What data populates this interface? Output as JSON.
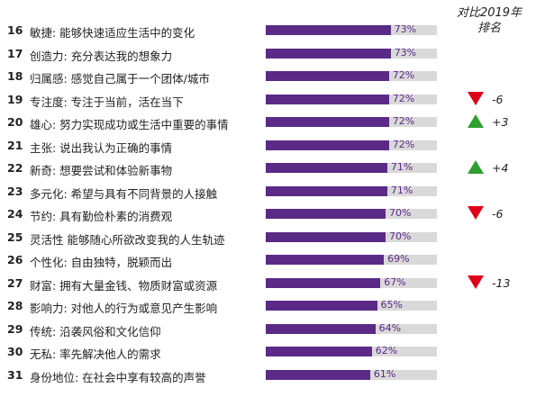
{
  "header": {
    "line1": "对比2019年",
    "line2": "排名"
  },
  "colors": {
    "bar": "#5b2a86",
    "track": "#d9d9d9",
    "up": "#2e9e2e",
    "down": "#e0001a"
  },
  "chart_data": {
    "type": "bar",
    "orientation": "horizontal",
    "xlim": [
      0,
      100
    ],
    "rows": [
      {
        "rank": "16",
        "label": "敏捷: 能够快速适应生活中的变化",
        "value": 73,
        "value_label": "73%",
        "change": null
      },
      {
        "rank": "17",
        "label": "创造力: 充分表达我的想象力",
        "value": 73,
        "value_label": "73%",
        "change": null
      },
      {
        "rank": "18",
        "label": "归属感: 感觉自己属于一个团体/城市",
        "value": 72,
        "value_label": "72%",
        "change": null
      },
      {
        "rank": "19",
        "label": "专注度: 专注于当前，活在当下",
        "value": 72,
        "value_label": "72%",
        "change": {
          "direction": "down",
          "text": "-6"
        }
      },
      {
        "rank": "20",
        "label": "雄心: 努力实现成功或生活中重要的事情",
        "value": 72,
        "value_label": "72%",
        "change": {
          "direction": "up",
          "text": "+3"
        }
      },
      {
        "rank": "21",
        "label": "主张: 说出我认为正确的事情",
        "value": 72,
        "value_label": "72%",
        "change": null
      },
      {
        "rank": "22",
        "label": "新奇: 想要尝试和体验新事物",
        "value": 71,
        "value_label": "71%",
        "change": {
          "direction": "up",
          "text": "+4"
        }
      },
      {
        "rank": "23",
        "label": "多元化: 希望与具有不同背景的人接触",
        "value": 71,
        "value_label": "71%",
        "change": null
      },
      {
        "rank": "24",
        "label": "节约: 具有勤俭朴素的消费观",
        "value": 70,
        "value_label": "70%",
        "change": {
          "direction": "down",
          "text": "-6"
        }
      },
      {
        "rank": "25",
        "label": "灵活性 能够随心所欲改变我的人生轨迹",
        "value": 70,
        "value_label": "70%",
        "change": null
      },
      {
        "rank": "26",
        "label": "个性化: 自由独特，脱颖而出",
        "value": 69,
        "value_label": "69%",
        "change": null
      },
      {
        "rank": "27",
        "label": "财富: 拥有大量金钱、物质财富或资源",
        "value": 67,
        "value_label": "67%",
        "change": {
          "direction": "down",
          "text": "-13"
        }
      },
      {
        "rank": "28",
        "label": "影响力: 对他人的行为或意见产生影响",
        "value": 65,
        "value_label": "65%",
        "change": null
      },
      {
        "rank": "29",
        "label": "传统: 沿袭风俗和文化信仰",
        "value": 64,
        "value_label": "64%",
        "change": null
      },
      {
        "rank": "30",
        "label": "无私: 率先解决他人的需求",
        "value": 62,
        "value_label": "62%",
        "change": null
      },
      {
        "rank": "31",
        "label": "身份地位: 在社会中享有较高的声誉",
        "value": 61,
        "value_label": "61%",
        "change": null
      }
    ]
  }
}
